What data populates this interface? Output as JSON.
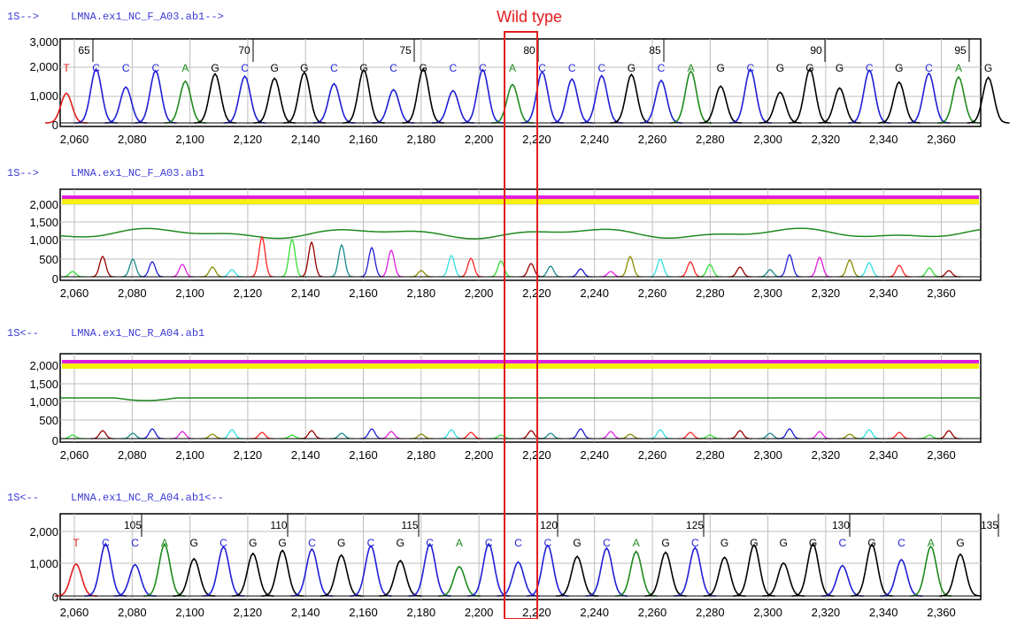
{
  "tracks": [
    {
      "title": "1S-->     LMNA.ex1_NC_F_A03.ab1-->",
      "kind": "chromatogram",
      "y_ticks": [
        "3,000",
        "2,000",
        "1,000",
        "0"
      ],
      "x_ticks": [
        "2,060",
        "2,080",
        "2,100",
        "2,120",
        "2,140",
        "2,160",
        "2,180",
        "2,200",
        "2,220",
        "2,240",
        "2,260",
        "2,280",
        "2,300",
        "2,320",
        "2,340",
        "2,360"
      ],
      "positions": [
        "65",
        "70",
        "75",
        "80",
        "85",
        "90",
        "95"
      ],
      "bases": [
        "T",
        "C",
        "C",
        "C",
        "A",
        "G",
        "C",
        "G",
        "G",
        "C",
        "G",
        "C",
        "G",
        "C",
        "C",
        "A",
        "C",
        "C",
        "C",
        "G",
        "C",
        "A",
        "G",
        "C",
        "G",
        "G",
        "G",
        "C",
        "G",
        "C",
        "A",
        "G"
      ]
    },
    {
      "title": "1S-->     LMNA.ex1_NC_F_A03.ab1",
      "kind": "quality",
      "y_ticks": [
        "2,000",
        "1,500",
        "1,000",
        "500",
        "0"
      ],
      "x_ticks": [
        "2,060",
        "2,080",
        "2,100",
        "2,120",
        "2,140",
        "2,160",
        "2,180",
        "2,200",
        "2,220",
        "2,240",
        "2,260",
        "2,280",
        "2,300",
        "2,320",
        "2,340",
        "2,360"
      ]
    },
    {
      "title": "1S<--     LMNA.ex1_NC_R_A04.ab1",
      "kind": "quality",
      "y_ticks": [
        "2,000",
        "1,500",
        "1,000",
        "500",
        "0"
      ],
      "x_ticks": [
        "2,060",
        "2,080",
        "2,100",
        "2,120",
        "2,140",
        "2,160",
        "2,180",
        "2,200",
        "2,220",
        "2,240",
        "2,260",
        "2,280",
        "2,300",
        "2,320",
        "2,340",
        "2,360"
      ]
    },
    {
      "title": "1S<--     LMNA.ex1_NC_R_A04.ab1<--",
      "kind": "chromatogram",
      "y_ticks": [
        "2,000",
        "1,000",
        "0"
      ],
      "x_ticks": [
        "2,060",
        "2,080",
        "2,100",
        "2,120",
        "2,140",
        "2,160",
        "2,180",
        "2,200",
        "2,220",
        "2,240",
        "2,260",
        "2,280",
        "2,300",
        "2,320",
        "2,340",
        "2,360"
      ],
      "positions": [
        "105",
        "110",
        "115",
        "120",
        "125",
        "130",
        "135"
      ],
      "bases": [
        "T",
        "C",
        "C",
        "A",
        "G",
        "C",
        "G",
        "G",
        "C",
        "G",
        "C",
        "G",
        "C",
        "A",
        "C",
        "C",
        "C",
        "G",
        "C",
        "A",
        "G",
        "C",
        "G",
        "G",
        "G",
        "G",
        "C",
        "G",
        "C",
        "A",
        "G"
      ]
    }
  ],
  "highlight": {
    "label": "Wild type",
    "color": "#e21d1d"
  },
  "colors": {
    "A": "#1e8a1e",
    "C": "#1f1fd6",
    "G": "#000000",
    "T": "#e21d1d"
  }
}
